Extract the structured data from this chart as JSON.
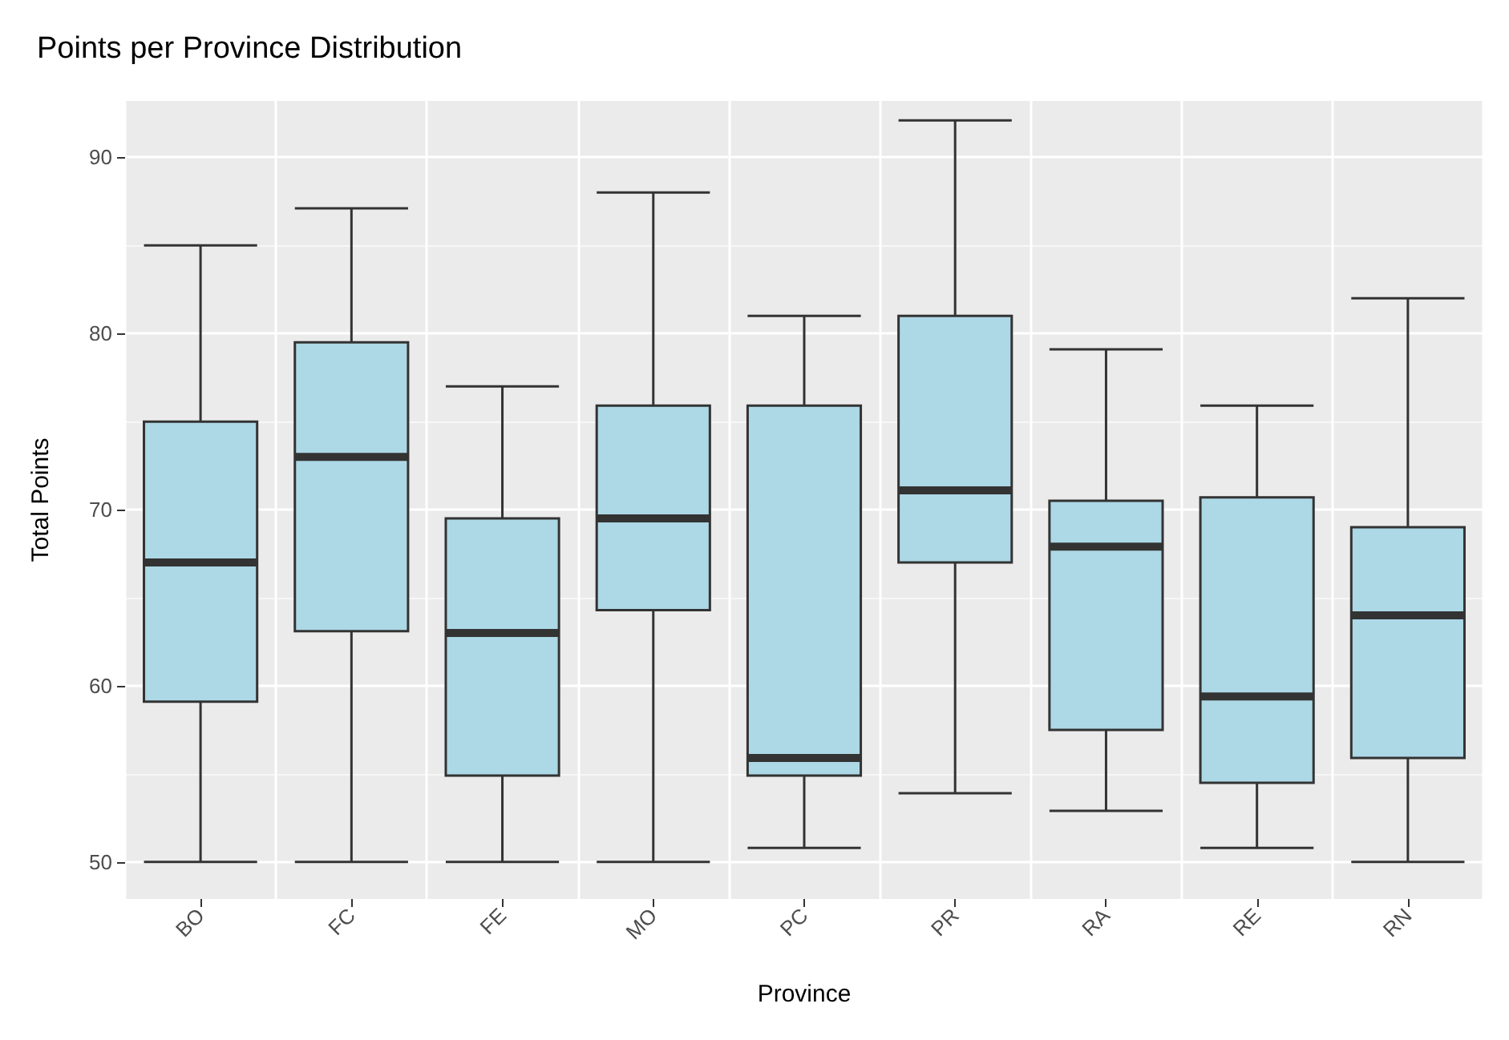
{
  "chart_data": {
    "type": "box",
    "title": "Points per Province Distribution",
    "xlabel": "Province",
    "ylabel": "Total Points",
    "categories": [
      "BO",
      "FC",
      "FE",
      "MO",
      "PC",
      "PR",
      "RA",
      "RE",
      "RN"
    ],
    "series": [
      {
        "color": "#add8e6",
        "boxes": [
          {
            "low": 50,
            "q1": 59.1,
            "median": 67,
            "q3": 75,
            "high": 85
          },
          {
            "low": 50,
            "q1": 63.1,
            "median": 73,
            "q3": 79.5,
            "high": 87.1
          },
          {
            "low": 50,
            "q1": 54.9,
            "median": 63,
            "q3": 69.5,
            "high": 77
          },
          {
            "low": 50,
            "q1": 64.3,
            "median": 69.5,
            "q3": 75.9,
            "high": 88
          },
          {
            "low": 50.8,
            "q1": 54.9,
            "median": 55.9,
            "q3": 75.9,
            "high": 81
          },
          {
            "low": 53.9,
            "q1": 67,
            "median": 71.1,
            "q3": 81,
            "high": 92.1
          },
          {
            "low": 52.9,
            "q1": 57.5,
            "median": 67.9,
            "q3": 70.5,
            "high": 79.1
          },
          {
            "low": 50.8,
            "q1": 54.5,
            "median": 59.4,
            "q3": 70.7,
            "high": 75.9
          },
          {
            "low": 50,
            "q1": 55.9,
            "median": 64,
            "q3": 69,
            "high": 82
          }
        ]
      }
    ],
    "ylim": [
      47.9,
      93.2
    ],
    "yticks": [
      50,
      60,
      70,
      80,
      90
    ],
    "grid": true
  }
}
